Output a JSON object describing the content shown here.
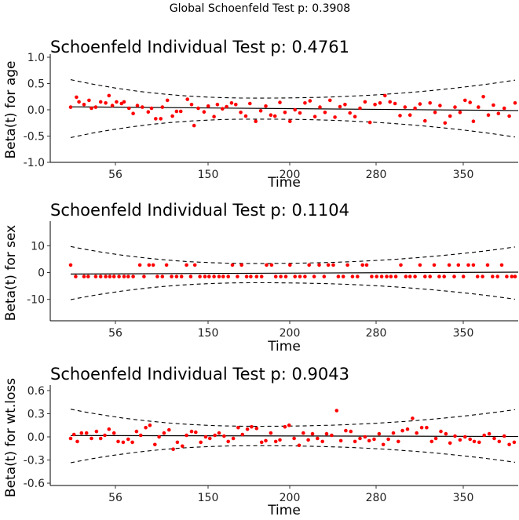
{
  "global_title": "Global Schoenfeld Test p: 0.3908",
  "chart_data": [
    {
      "type": "scatter",
      "title": "Schoenfeld Individual Test p: 0.4761",
      "xlabel": "Time",
      "ylabel": "Beta(t) for age",
      "ylim": [
        -1.0,
        1.0
      ],
      "yticks": [
        -1.0,
        -0.5,
        0.0,
        0.5,
        1.0
      ],
      "ytick_labels": [
        "-1.0",
        "-0.5",
        "0.0",
        "0.5",
        "1.0"
      ],
      "xtick_labels": [
        "56",
        "150",
        "200",
        "280",
        "350"
      ],
      "point_color": "#ff0000",
      "points": [
        [
          0.0,
          0.05
        ],
        [
          0.7,
          0.24
        ],
        [
          1.0,
          0.15
        ],
        [
          1.6,
          0.1
        ],
        [
          2.2,
          0.18
        ],
        [
          2.5,
          0.03
        ],
        [
          3.0,
          0.05
        ],
        [
          3.6,
          0.15
        ],
        [
          4.2,
          0.13
        ],
        [
          4.6,
          0.27
        ],
        [
          5.0,
          0.08
        ],
        [
          5.5,
          0.15
        ],
        [
          6.1,
          0.12
        ],
        [
          6.4,
          0.15
        ],
        [
          7.0,
          0.03
        ],
        [
          7.5,
          -0.07
        ],
        [
          8.0,
          0.08
        ],
        [
          8.6,
          0.05
        ],
        [
          9.3,
          -0.04
        ],
        [
          9.7,
          0.03
        ],
        [
          10.2,
          -0.17
        ],
        [
          10.8,
          -0.17
        ],
        [
          11.0,
          0.05
        ],
        [
          11.6,
          0.18
        ],
        [
          12.2,
          -0.12
        ],
        [
          12.7,
          -0.03
        ],
        [
          13.2,
          -0.03
        ],
        [
          14.0,
          0.2
        ],
        [
          14.5,
          0.1
        ],
        [
          14.8,
          -0.3
        ],
        [
          15.3,
          0.03
        ],
        [
          16.0,
          -0.04
        ],
        [
          16.5,
          0.07
        ],
        [
          17.2,
          -0.13
        ],
        [
          17.6,
          0.1
        ],
        [
          18.2,
          0.02
        ],
        [
          18.7,
          0.06
        ],
        [
          19.3,
          0.13
        ],
        [
          19.8,
          0.1
        ],
        [
          20.4,
          -0.05
        ],
        [
          21.0,
          -0.12
        ],
        [
          21.5,
          0.12
        ],
        [
          22.2,
          -0.22
        ],
        [
          22.8,
          -0.02
        ],
        [
          23.4,
          0.07
        ],
        [
          24.0,
          -0.1
        ],
        [
          24.5,
          -0.12
        ],
        [
          25.1,
          0.14
        ],
        [
          25.7,
          -0.05
        ],
        [
          26.3,
          -0.22
        ],
        [
          26.9,
          0.0
        ],
        [
          27.5,
          -0.06
        ],
        [
          28.1,
          0.13
        ],
        [
          28.7,
          0.17
        ],
        [
          29.3,
          -0.13
        ],
        [
          29.9,
          0.05
        ],
        [
          30.5,
          -0.05
        ],
        [
          31.1,
          0.18
        ],
        [
          31.7,
          -0.14
        ],
        [
          32.3,
          0.06
        ],
        [
          32.9,
          0.1
        ],
        [
          33.5,
          -0.06
        ],
        [
          34.1,
          -0.13
        ],
        [
          34.7,
          0.03
        ],
        [
          35.3,
          0.15
        ],
        [
          35.9,
          -0.24
        ],
        [
          36.5,
          0.1
        ],
        [
          37.1,
          0.13
        ],
        [
          37.7,
          0.27
        ],
        [
          38.3,
          0.15
        ],
        [
          38.9,
          0.12
        ],
        [
          39.5,
          -0.11
        ],
        [
          40.1,
          0.05
        ],
        [
          40.7,
          -0.1
        ],
        [
          41.3,
          0.03
        ],
        [
          41.9,
          0.11
        ],
        [
          42.5,
          -0.21
        ],
        [
          43.1,
          0.13
        ],
        [
          43.7,
          -0.05
        ],
        [
          44.3,
          0.08
        ],
        [
          44.9,
          -0.25
        ],
        [
          45.5,
          -0.12
        ],
        [
          46.1,
          0.05
        ],
        [
          46.7,
          -0.05
        ],
        [
          47.3,
          0.18
        ],
        [
          47.9,
          0.14
        ],
        [
          48.3,
          -0.22
        ],
        [
          48.9,
          0.05
        ],
        [
          49.5,
          0.25
        ],
        [
          50.1,
          -0.1
        ],
        [
          50.7,
          0.09
        ],
        [
          51.3,
          -0.07
        ],
        [
          52.0,
          0.03
        ],
        [
          52.6,
          -0.12
        ],
        [
          53.3,
          0.13
        ]
      ]
    },
    {
      "type": "scatter",
      "title": "Schoenfeld Individual Test p: 0.1104",
      "xlabel": "Time",
      "ylabel": "Beta(t) for sex",
      "ylim": [
        -18,
        18
      ],
      "yticks": [
        -10,
        0,
        10
      ],
      "ytick_labels": [
        "-10",
        "0",
        "10"
      ],
      "xtick_labels": [
        "56",
        "150",
        "200",
        "280",
        "350"
      ],
      "point_color": "#ff0000",
      "points": [
        [
          0.0,
          2.8
        ],
        [
          0.6,
          -1.5
        ],
        [
          1.6,
          -1.5
        ],
        [
          2.1,
          -1.5
        ],
        [
          3.0,
          -1.5
        ],
        [
          3.6,
          -1.5
        ],
        [
          4.2,
          -1.5
        ],
        [
          4.7,
          -1.5
        ],
        [
          5.2,
          -1.5
        ],
        [
          5.8,
          -1.5
        ],
        [
          6.4,
          -1.5
        ],
        [
          6.9,
          -1.5
        ],
        [
          7.5,
          -1.5
        ],
        [
          8.3,
          2.8
        ],
        [
          8.8,
          -1.5
        ],
        [
          9.4,
          2.8
        ],
        [
          9.9,
          2.8
        ],
        [
          10.4,
          -1.5
        ],
        [
          11.0,
          -1.5
        ],
        [
          11.5,
          2.8
        ],
        [
          12.1,
          -1.5
        ],
        [
          12.7,
          -1.5
        ],
        [
          13.3,
          -1.5
        ],
        [
          13.9,
          2.8
        ],
        [
          14.4,
          -1.5
        ],
        [
          14.9,
          2.8
        ],
        [
          15.5,
          -1.5
        ],
        [
          16.1,
          -1.5
        ],
        [
          16.6,
          -1.5
        ],
        [
          17.2,
          -1.5
        ],
        [
          17.8,
          -1.5
        ],
        [
          18.3,
          -1.5
        ],
        [
          18.9,
          -1.5
        ],
        [
          19.4,
          2.8
        ],
        [
          20.0,
          -1.5
        ],
        [
          20.5,
          2.8
        ],
        [
          21.1,
          -1.5
        ],
        [
          21.6,
          -1.5
        ],
        [
          22.3,
          -1.5
        ],
        [
          22.9,
          -1.5
        ],
        [
          23.5,
          2.8
        ],
        [
          24.1,
          2.8
        ],
        [
          24.6,
          -1.5
        ],
        [
          25.2,
          -1.5
        ],
        [
          25.8,
          -1.5
        ],
        [
          26.3,
          2.8
        ],
        [
          26.9,
          -1.5
        ],
        [
          27.5,
          -1.5
        ],
        [
          28.1,
          -1.5
        ],
        [
          28.6,
          2.8
        ],
        [
          29.2,
          -1.5
        ],
        [
          29.8,
          2.8
        ],
        [
          30.4,
          -1.5
        ],
        [
          30.9,
          2.8
        ],
        [
          31.5,
          2.8
        ],
        [
          32.1,
          -1.5
        ],
        [
          32.7,
          -1.5
        ],
        [
          33.2,
          2.8
        ],
        [
          33.8,
          -1.5
        ],
        [
          34.4,
          -1.5
        ],
        [
          35.0,
          2.8
        ],
        [
          35.5,
          2.8
        ],
        [
          36.1,
          -1.5
        ],
        [
          36.7,
          -1.5
        ],
        [
          37.3,
          -1.5
        ],
        [
          37.9,
          -1.5
        ],
        [
          38.4,
          -1.5
        ],
        [
          39.0,
          -1.5
        ],
        [
          39.6,
          2.8
        ],
        [
          40.2,
          -1.5
        ],
        [
          40.7,
          -1.5
        ],
        [
          41.3,
          -1.5
        ],
        [
          41.9,
          2.8
        ],
        [
          42.5,
          -1.5
        ],
        [
          43.1,
          -1.5
        ],
        [
          43.6,
          2.8
        ],
        [
          44.2,
          -1.5
        ],
        [
          44.8,
          -1.5
        ],
        [
          45.4,
          2.8
        ],
        [
          46.0,
          -1.5
        ],
        [
          46.5,
          2.8
        ],
        [
          47.1,
          -1.5
        ],
        [
          47.7,
          2.8
        ],
        [
          48.3,
          2.8
        ],
        [
          48.8,
          -1.5
        ],
        [
          49.4,
          -1.5
        ],
        [
          50.0,
          2.8
        ],
        [
          50.6,
          -1.5
        ],
        [
          51.2,
          -1.5
        ],
        [
          51.7,
          2.8
        ],
        [
          52.3,
          -1.5
        ],
        [
          52.9,
          -1.5
        ],
        [
          53.3,
          -1.5
        ]
      ]
    },
    {
      "type": "scatter",
      "title": "Schoenfeld Individual Test p: 0.9043",
      "xlabel": "Time",
      "ylabel": "Beta(t) for wt.loss",
      "ylim": [
        -0.63,
        0.63
      ],
      "yticks": [
        -0.6,
        -0.3,
        0.0,
        0.3,
        0.6
      ],
      "ytick_labels": [
        "-0.6",
        "-0.3",
        "0.0",
        "0.3",
        "0.6"
      ],
      "xtick_labels": [
        "56",
        "150",
        "200",
        "280",
        "350"
      ],
      "point_color": "#ff0000",
      "points": [
        [
          0.0,
          -0.02
        ],
        [
          0.4,
          0.03
        ],
        [
          0.8,
          -0.06
        ],
        [
          1.3,
          0.05
        ],
        [
          1.9,
          0.05
        ],
        [
          2.5,
          -0.02
        ],
        [
          3.1,
          0.07
        ],
        [
          3.6,
          -0.02
        ],
        [
          4.1,
          0.02
        ],
        [
          4.6,
          0.1
        ],
        [
          5.2,
          0.05
        ],
        [
          5.7,
          -0.06
        ],
        [
          6.3,
          -0.07
        ],
        [
          6.9,
          -0.03
        ],
        [
          7.4,
          -0.07
        ],
        [
          7.9,
          0.07
        ],
        [
          8.4,
          0.02
        ],
        [
          9.0,
          0.12
        ],
        [
          9.5,
          0.15
        ],
        [
          10.1,
          -0.1
        ],
        [
          10.6,
          0.0
        ],
        [
          11.2,
          0.05
        ],
        [
          11.8,
          0.09
        ],
        [
          12.3,
          -0.16
        ],
        [
          12.8,
          -0.07
        ],
        [
          13.4,
          -0.12
        ],
        [
          13.9,
          0.02
        ],
        [
          14.5,
          0.07
        ],
        [
          15.0,
          0.06
        ],
        [
          15.6,
          -0.07
        ],
        [
          16.2,
          0.0
        ],
        [
          16.7,
          -0.02
        ],
        [
          17.3,
          0.02
        ],
        [
          17.8,
          0.05
        ],
        [
          18.4,
          0.01
        ],
        [
          18.9,
          -0.06
        ],
        [
          19.5,
          -0.02
        ],
        [
          20.1,
          0.12
        ],
        [
          20.6,
          0.03
        ],
        [
          21.2,
          0.1
        ],
        [
          21.7,
          0.13
        ],
        [
          22.3,
          0.11
        ],
        [
          22.9,
          -0.07
        ],
        [
          23.4,
          -0.05
        ],
        [
          24.0,
          0.05
        ],
        [
          24.6,
          -0.06
        ],
        [
          25.1,
          -0.04
        ],
        [
          25.7,
          0.13
        ],
        [
          26.2,
          0.15
        ],
        [
          26.8,
          -0.02
        ],
        [
          27.4,
          -0.11
        ],
        [
          27.9,
          0.05
        ],
        [
          28.5,
          -0.04
        ],
        [
          29.0,
          0.04
        ],
        [
          29.6,
          -0.02
        ],
        [
          30.2,
          -0.06
        ],
        [
          30.7,
          0.04
        ],
        [
          31.3,
          0.02
        ],
        [
          31.9,
          0.34
        ],
        [
          32.4,
          -0.05
        ],
        [
          33.0,
          0.08
        ],
        [
          33.6,
          0.07
        ],
        [
          34.1,
          -0.06
        ],
        [
          34.7,
          -0.02
        ],
        [
          35.3,
          0.0
        ],
        [
          35.8,
          -0.05
        ],
        [
          36.4,
          -0.03
        ],
        [
          37.0,
          0.04
        ],
        [
          37.5,
          -0.1
        ],
        [
          38.1,
          -0.03
        ],
        [
          38.7,
          0.05
        ],
        [
          39.3,
          -0.06
        ],
        [
          39.8,
          0.08
        ],
        [
          40.4,
          0.1
        ],
        [
          41.0,
          0.24
        ],
        [
          41.5,
          0.05
        ],
        [
          42.1,
          0.12
        ],
        [
          42.7,
          0.12
        ],
        [
          43.3,
          -0.06
        ],
        [
          43.8,
          -0.02
        ],
        [
          44.4,
          0.07
        ],
        [
          45.0,
          0.04
        ],
        [
          45.5,
          -0.08
        ],
        [
          46.1,
          0.01
        ],
        [
          46.7,
          -0.04
        ],
        [
          47.3,
          0.0
        ],
        [
          47.9,
          -0.03
        ],
        [
          48.4,
          -0.06
        ],
        [
          49.0,
          -0.07
        ],
        [
          49.6,
          0.02
        ],
        [
          50.2,
          0.04
        ],
        [
          50.8,
          -0.02
        ],
        [
          51.4,
          -0.06
        ],
        [
          52.0,
          0.01
        ],
        [
          52.6,
          -0.1
        ],
        [
          53.2,
          -0.07
        ]
      ]
    }
  ]
}
